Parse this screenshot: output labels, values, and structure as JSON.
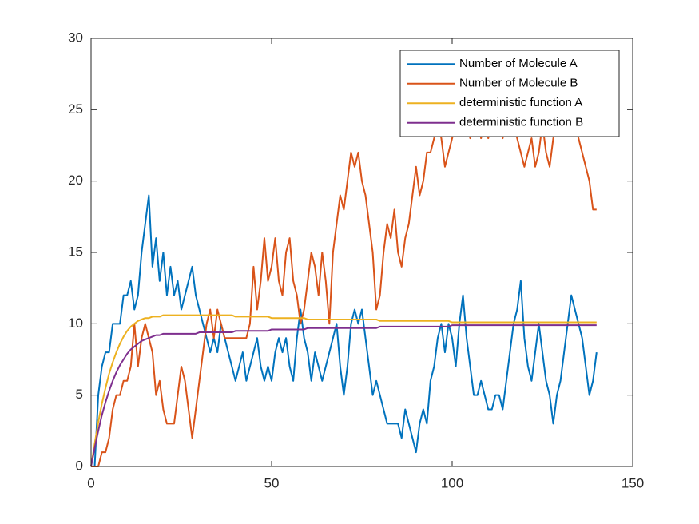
{
  "chart_data": {
    "type": "line",
    "x": [
      0,
      1,
      2,
      3,
      4,
      5,
      6,
      7,
      8,
      9,
      10,
      11,
      12,
      13,
      14,
      15,
      16,
      17,
      18,
      19,
      20,
      21,
      22,
      23,
      24,
      25,
      26,
      27,
      28,
      29,
      30,
      31,
      32,
      33,
      34,
      35,
      36,
      37,
      38,
      39,
      40,
      41,
      42,
      43,
      44,
      45,
      46,
      47,
      48,
      49,
      50,
      51,
      52,
      53,
      54,
      55,
      56,
      57,
      58,
      59,
      60,
      61,
      62,
      63,
      64,
      65,
      66,
      67,
      68,
      69,
      70,
      71,
      72,
      73,
      74,
      75,
      76,
      77,
      78,
      79,
      80,
      81,
      82,
      83,
      84,
      85,
      86,
      87,
      88,
      89,
      90,
      91,
      92,
      93,
      94,
      95,
      96,
      97,
      98,
      99,
      100,
      101,
      102,
      103,
      104,
      105,
      106,
      107,
      108,
      109,
      110,
      111,
      112,
      113,
      114,
      115,
      116,
      117,
      118,
      119,
      120,
      121,
      122,
      123,
      124,
      125,
      126,
      127,
      128,
      129,
      130,
      131,
      132,
      133,
      134,
      135,
      136,
      137,
      138,
      139,
      140
    ],
    "series": [
      {
        "name": "Number of Molecule A",
        "color": "#0072BD",
        "values": [
          0,
          0,
          5,
          7,
          8,
          8,
          10,
          10,
          10,
          12,
          12,
          13,
          11,
          12,
          15,
          17,
          19,
          14,
          16,
          13,
          15,
          12,
          14,
          12,
          13,
          11,
          12,
          13,
          14,
          12,
          11,
          10,
          9,
          8,
          9,
          8,
          10,
          9,
          8,
          7,
          6,
          7,
          8,
          6,
          7,
          8,
          9,
          7,
          6,
          7,
          6,
          8,
          9,
          8,
          9,
          7,
          6,
          9,
          11,
          9,
          8,
          6,
          8,
          7,
          6,
          7,
          8,
          9,
          10,
          7,
          5,
          7,
          10,
          11,
          10,
          11,
          9,
          7,
          5,
          6,
          5,
          4,
          3,
          3,
          3,
          3,
          2,
          4,
          3,
          2,
          1,
          3,
          4,
          3,
          6,
          7,
          9,
          10,
          8,
          10,
          9,
          7,
          10,
          12,
          9,
          7,
          5,
          5,
          6,
          5,
          4,
          4,
          5,
          5,
          4,
          6,
          8,
          10,
          11,
          13,
          9,
          7,
          6,
          8,
          10,
          8,
          6,
          5,
          3,
          5,
          6,
          8,
          10,
          12,
          11,
          10,
          9,
          7,
          5,
          6,
          8
        ]
      },
      {
        "name": "Number of Molecule B",
        "color": "#D95319",
        "values": [
          0,
          0,
          0,
          1,
          1,
          2,
          4,
          5,
          5,
          6,
          6,
          7,
          10,
          7,
          9,
          10,
          9,
          8,
          5,
          6,
          4,
          3,
          3,
          3,
          5,
          7,
          6,
          4,
          2,
          4,
          6,
          8,
          10,
          11,
          9,
          11,
          10,
          9,
          9,
          9,
          9,
          9,
          9,
          9,
          10,
          14,
          11,
          13,
          16,
          13,
          14,
          16,
          13,
          12,
          15,
          16,
          13,
          12,
          10,
          11,
          13,
          15,
          14,
          12,
          15,
          13,
          10,
          15,
          17,
          19,
          18,
          20,
          22,
          21,
          22,
          20,
          19,
          17,
          15,
          11,
          12,
          15,
          17,
          16,
          18,
          15,
          14,
          16,
          17,
          19,
          21,
          19,
          20,
          22,
          22,
          23,
          24,
          23,
          21,
          22,
          23,
          24,
          26,
          25,
          24,
          23,
          24,
          25,
          23,
          24,
          23,
          24,
          25,
          24,
          23,
          24,
          25,
          24,
          23,
          22,
          21,
          22,
          23,
          21,
          22,
          24,
          22,
          21,
          23,
          24,
          25,
          26,
          24,
          25,
          24,
          23,
          22,
          21,
          20,
          18,
          18
        ]
      },
      {
        "name": "deterministic function A",
        "color": "#EDB120",
        "values": [
          0,
          1.6,
          3.1,
          4.4,
          5.5,
          6.5,
          7.3,
          8,
          8.6,
          9.1,
          9.5,
          9.8,
          10,
          10.2,
          10.3,
          10.4,
          10.4,
          10.5,
          10.5,
          10.5,
          10.6,
          10.6,
          10.6,
          10.6,
          10.6,
          10.6,
          10.6,
          10.6,
          10.6,
          10.6,
          10.6,
          10.6,
          10.6,
          10.6,
          10.6,
          10.6,
          10.6,
          10.6,
          10.6,
          10.6,
          10.5,
          10.5,
          10.5,
          10.5,
          10.5,
          10.5,
          10.5,
          10.5,
          10.5,
          10.5,
          10.4,
          10.4,
          10.4,
          10.4,
          10.4,
          10.4,
          10.4,
          10.4,
          10.4,
          10.4,
          10.3,
          10.3,
          10.3,
          10.3,
          10.3,
          10.3,
          10.3,
          10.3,
          10.3,
          10.3,
          10.3,
          10.3,
          10.3,
          10.3,
          10.3,
          10.3,
          10.3,
          10.3,
          10.3,
          10.3,
          10.2,
          10.2,
          10.2,
          10.2,
          10.2,
          10.2,
          10.2,
          10.2,
          10.2,
          10.2,
          10.2,
          10.2,
          10.2,
          10.2,
          10.2,
          10.2,
          10.2,
          10.2,
          10.2,
          10.2,
          10.1,
          10.1,
          10.1,
          10.1,
          10.1,
          10.1,
          10.1,
          10.1,
          10.1,
          10.1,
          10.1,
          10.1,
          10.1,
          10.1,
          10.1,
          10.1,
          10.1,
          10.1,
          10.1,
          10.1,
          10.1,
          10.1,
          10.1,
          10.1,
          10.1,
          10.1,
          10.1,
          10.1,
          10.1,
          10.1,
          10.1,
          10.1,
          10.1,
          10.1,
          10.1,
          10.1,
          10.1,
          10.1,
          10.1,
          10.1,
          10.1
        ]
      },
      {
        "name": "deterministic function B",
        "color": "#7E2F8E",
        "values": [
          0,
          1.3,
          2.5,
          3.6,
          4.5,
          5.3,
          6,
          6.6,
          7.1,
          7.5,
          7.9,
          8.2,
          8.4,
          8.6,
          8.8,
          8.9,
          9,
          9.1,
          9.2,
          9.2,
          9.3,
          9.3,
          9.3,
          9.3,
          9.3,
          9.3,
          9.3,
          9.3,
          9.3,
          9.3,
          9.4,
          9.4,
          9.4,
          9.4,
          9.4,
          9.4,
          9.4,
          9.4,
          9.4,
          9.4,
          9.5,
          9.5,
          9.5,
          9.5,
          9.5,
          9.5,
          9.5,
          9.5,
          9.5,
          9.5,
          9.6,
          9.6,
          9.6,
          9.6,
          9.6,
          9.6,
          9.6,
          9.6,
          9.6,
          9.6,
          9.7,
          9.7,
          9.7,
          9.7,
          9.7,
          9.7,
          9.7,
          9.7,
          9.7,
          9.7,
          9.7,
          9.7,
          9.7,
          9.7,
          9.7,
          9.7,
          9.7,
          9.7,
          9.7,
          9.7,
          9.8,
          9.8,
          9.8,
          9.8,
          9.8,
          9.8,
          9.8,
          9.8,
          9.8,
          9.8,
          9.8,
          9.8,
          9.8,
          9.8,
          9.8,
          9.8,
          9.8,
          9.8,
          9.8,
          9.8,
          9.9,
          9.9,
          9.9,
          9.9,
          9.9,
          9.9,
          9.9,
          9.9,
          9.9,
          9.9,
          9.9,
          9.9,
          9.9,
          9.9,
          9.9,
          9.9,
          9.9,
          9.9,
          9.9,
          9.9,
          9.9,
          9.9,
          9.9,
          9.9,
          9.9,
          9.9,
          9.9,
          9.9,
          9.9,
          9.9,
          9.9,
          9.9,
          9.9,
          9.9,
          9.9,
          9.9,
          9.9,
          9.9,
          9.9,
          9.9,
          9.9
        ]
      }
    ],
    "xlim": [
      0,
      150
    ],
    "xticks": [
      0,
      50,
      100,
      150
    ],
    "ylim": [
      0,
      30
    ],
    "yticks": [
      0,
      5,
      10,
      15,
      20,
      25,
      30
    ],
    "grid": false,
    "legend": "northeast"
  }
}
